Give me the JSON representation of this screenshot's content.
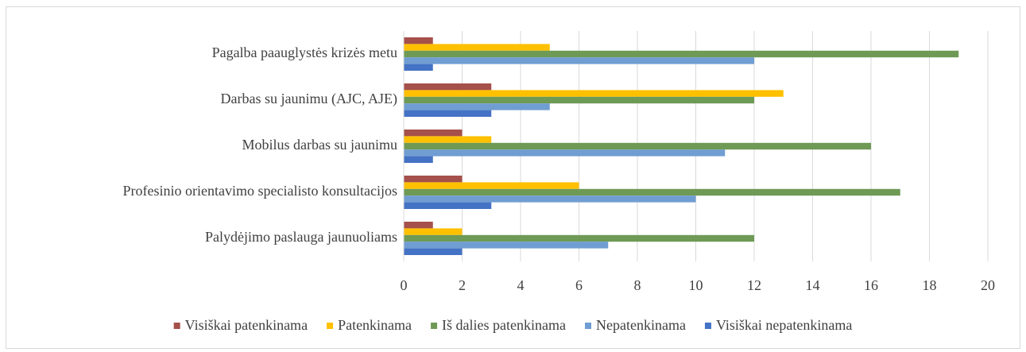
{
  "chart_data": {
    "type": "bar",
    "orientation": "horizontal",
    "categories": [
      "Pagalba paauglystės krizės metu",
      "Darbas su jaunimu (AJC, AJE)",
      "Mobilus darbas su jaunimu",
      "Profesinio orientavimo specialisto konsultacijos",
      "Palydėjimo paslauga jaunuoliams"
    ],
    "series": [
      {
        "name": "Visiškai patenkinama",
        "color": "#a5504a",
        "values": [
          1,
          3,
          2,
          2,
          1
        ]
      },
      {
        "name": "Patenkinama",
        "color": "#ffc000",
        "values": [
          5,
          13,
          3,
          6,
          2
        ]
      },
      {
        "name": "Iš dalies patenkinama",
        "color": "#6e9a55",
        "values": [
          19,
          12,
          16,
          17,
          12
        ]
      },
      {
        "name": "Nepatenkinama",
        "color": "#709dd2",
        "values": [
          12,
          5,
          11,
          10,
          7
        ]
      },
      {
        "name": "Visiškai nepatenkinama",
        "color": "#4472c4",
        "values": [
          1,
          3,
          1,
          3,
          2
        ]
      }
    ],
    "xlim": [
      0,
      20
    ],
    "xticks": [
      0,
      2,
      4,
      6,
      8,
      10,
      12,
      14,
      16,
      18,
      20
    ],
    "grid": true,
    "legend": "bottom"
  }
}
